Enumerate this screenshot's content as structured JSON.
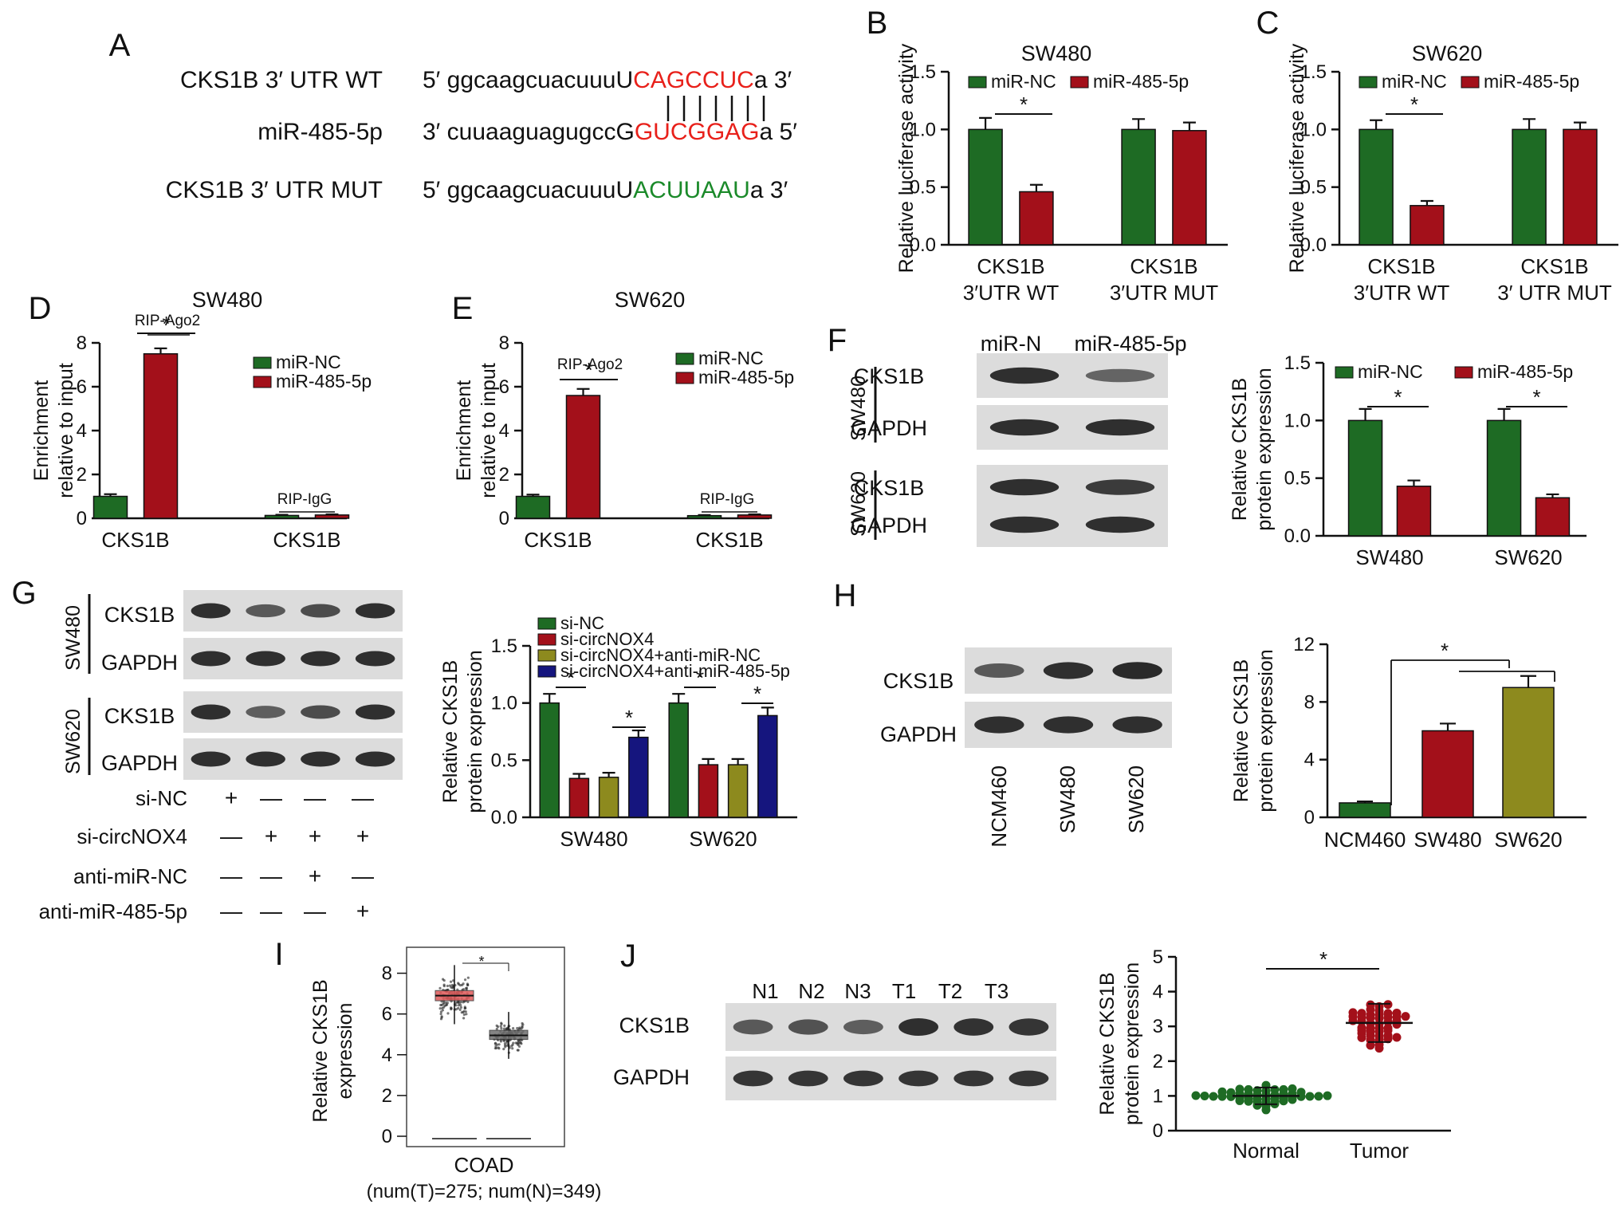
{
  "colors": {
    "green": "#1e6b24",
    "red": "#a3101a",
    "olive": "#8d8a1e",
    "navy": "#15157e",
    "seq_red": "#e8201a",
    "seq_green": "#1b8a2a",
    "box_red": "#e05a5a",
    "box_grey": "#6f6f6f"
  },
  "panels": {
    "A": {
      "letter": "A",
      "rows": [
        {
          "label": "CKS1B 3′ UTR WT",
          "prefix": "5′ ggcaagcuacuuuU",
          "core": "CAGCCUC",
          "suffix": "a 3′",
          "core_color": "seq_red"
        },
        {
          "label": "miR-485-5p",
          "prefix": "3′ cuuaaguagugccG",
          "core": "GUCGGAG",
          "suffix": "a 5′",
          "core_color": "seq_red"
        },
        {
          "label": "CKS1B 3′ UTR MUT",
          "prefix": "5′ ggcaagcuacuuuU",
          "core": "ACUUAAU",
          "suffix": "a 3′",
          "core_color": "seq_green"
        }
      ]
    },
    "D_letter": "D",
    "E_letter": "E",
    "F": {
      "letter": "F",
      "lane_labels": [
        "miR-N",
        "miR-485-5p"
      ],
      "cells": [
        "SW480",
        "SW620"
      ],
      "bands": [
        "CKS1B",
        "GAPDH",
        "CKS1B",
        "GAPDH"
      ]
    },
    "G": {
      "letter": "G",
      "cells": [
        "SW480",
        "SW620"
      ],
      "bands": [
        "CKS1B",
        "GAPDH",
        "CKS1B",
        "GAPDH"
      ],
      "conditions": [
        {
          "label": "si-NC",
          "marks": [
            "+",
            "—",
            "—",
            "—"
          ]
        },
        {
          "label": "si-circNOX4",
          "marks": [
            "—",
            "+",
            "+",
            "+"
          ]
        },
        {
          "label": "anti-miR-NC",
          "marks": [
            "—",
            "—",
            "+",
            "—"
          ]
        },
        {
          "label": "anti-miR-485-5p",
          "marks": [
            "—",
            "—",
            "—",
            "+"
          ]
        }
      ]
    },
    "H": {
      "letter": "H",
      "bands": [
        "CKS1B",
        "GAPDH"
      ],
      "lanes": [
        "NCM460",
        "SW480",
        "SW620"
      ]
    },
    "I_letter": "I",
    "J": {
      "letter": "J",
      "lanes": [
        "N1",
        "N2",
        "N3",
        "T1",
        "T2",
        "T3"
      ],
      "bands": [
        "CKS1B",
        "GAPDH"
      ]
    }
  },
  "chart_data": [
    {
      "id": "B",
      "letter": "B",
      "type": "bar",
      "title": "SW480",
      "ylabel": "Relative luciferase activity",
      "ylim": [
        0,
        1.5
      ],
      "yticks": [
        "0.0",
        "0.5",
        "1.0",
        "1.5"
      ],
      "categories": [
        [
          "CKS1B",
          "3′UTR WT"
        ],
        [
          "CKS1B",
          "3′UTR MUT"
        ]
      ],
      "legend_position": "top",
      "series": [
        {
          "name": "miR-NC",
          "color": "green",
          "values": [
            1.0,
            1.0
          ],
          "errors": [
            0.1,
            0.09
          ]
        },
        {
          "name": "miR-485-5p",
          "color": "red",
          "values": [
            0.46,
            0.99
          ],
          "errors": [
            0.06,
            0.07
          ]
        }
      ],
      "significance": [
        {
          "label": "*"
        }
      ]
    },
    {
      "id": "C",
      "letter": "C",
      "type": "bar",
      "title": "SW620",
      "ylabel": "Relative luciferase activity",
      "ylim": [
        0,
        1.5
      ],
      "yticks": [
        "0.0",
        "0.5",
        "1.0",
        "1.5"
      ],
      "categories": [
        [
          "CKS1B",
          "3′UTR WT"
        ],
        [
          "CKS1B",
          "3′ UTR MUT"
        ]
      ],
      "legend_position": "top",
      "series": [
        {
          "name": "miR-NC",
          "color": "green",
          "values": [
            1.0,
            1.0
          ],
          "errors": [
            0.08,
            0.09
          ]
        },
        {
          "name": "miR-485-5p",
          "color": "red",
          "values": [
            0.34,
            1.0
          ],
          "errors": [
            0.04,
            0.06
          ]
        }
      ],
      "significance": [
        {
          "label": "*"
        }
      ]
    },
    {
      "id": "D",
      "type": "bar",
      "title": "SW480",
      "ylabel": [
        "Enrichment",
        "relative to input"
      ],
      "ylim": [
        0,
        8
      ],
      "yticks": [
        "0",
        "2",
        "4",
        "6",
        "8"
      ],
      "categories": [
        [
          "CKS1B"
        ],
        [
          "CKS1B"
        ]
      ],
      "group_labels": [
        "RIP-Ago2",
        "RIP-IgG"
      ],
      "legend_position": "right",
      "series": [
        {
          "name": "miR-NC",
          "color": "green",
          "values": [
            1.0,
            0.13
          ],
          "errors": [
            0.1,
            0.03
          ]
        },
        {
          "name": "miR-485-5p",
          "color": "red",
          "values": [
            7.5,
            0.15
          ],
          "errors": [
            0.25,
            0.03
          ]
        }
      ],
      "significance": [
        {
          "label": "*"
        }
      ]
    },
    {
      "id": "E",
      "type": "bar",
      "title": "SW620",
      "ylabel": [
        "Enrichment",
        "relative to input"
      ],
      "ylim": [
        0,
        8
      ],
      "yticks": [
        "0",
        "2",
        "4",
        "6",
        "8"
      ],
      "categories": [
        [
          "CKS1B"
        ],
        [
          "CKS1B"
        ]
      ],
      "group_labels": [
        "RIP-Ago2",
        "RIP-IgG"
      ],
      "legend_position": "right",
      "series": [
        {
          "name": "miR-NC",
          "color": "green",
          "values": [
            1.0,
            0.12
          ],
          "errors": [
            0.08,
            0.03
          ]
        },
        {
          "name": "miR-485-5p",
          "color": "red",
          "values": [
            5.6,
            0.15
          ],
          "errors": [
            0.3,
            0.03
          ]
        }
      ],
      "significance": [
        {
          "label": "*"
        }
      ]
    },
    {
      "id": "F",
      "type": "bar",
      "ylabel": [
        "Relative CKS1B",
        "protein expression"
      ],
      "ylim": [
        0,
        1.5
      ],
      "yticks": [
        "0.0",
        "0.5",
        "1.0",
        "1.5"
      ],
      "categories": [
        [
          "SW480"
        ],
        [
          "SW620"
        ]
      ],
      "legend_position": "top",
      "series": [
        {
          "name": "miR-NC",
          "color": "green",
          "values": [
            1.0,
            1.0
          ],
          "errors": [
            0.1,
            0.1
          ]
        },
        {
          "name": "miR-485-5p",
          "color": "red",
          "values": [
            0.43,
            0.33
          ],
          "errors": [
            0.05,
            0.03
          ]
        }
      ],
      "significance": [
        {
          "label": "*"
        },
        {
          "label": "*"
        }
      ]
    },
    {
      "id": "G",
      "type": "bar",
      "ylabel": [
        "Relative CKS1B",
        "protein expression"
      ],
      "ylim": [
        0,
        1.5
      ],
      "yticks": [
        "0.0",
        "0.5",
        "1.0",
        "1.5"
      ],
      "categories": [
        [
          "SW480"
        ],
        [
          "SW620"
        ]
      ],
      "legend_position": "top",
      "series": [
        {
          "name": "si-NC",
          "color": "green",
          "values": [
            1.0,
            1.0
          ],
          "errors": [
            0.08,
            0.08
          ]
        },
        {
          "name": "si-circNOX4",
          "color": "red",
          "values": [
            0.34,
            0.46
          ],
          "errors": [
            0.04,
            0.05
          ]
        },
        {
          "name": "si-circNOX4+anti-miR-NC",
          "color": "olive",
          "values": [
            0.35,
            0.46
          ],
          "errors": [
            0.04,
            0.05
          ]
        },
        {
          "name": "si-circNOX4+anti-miR-485-5p",
          "color": "navy",
          "values": [
            0.7,
            0.89
          ],
          "errors": [
            0.06,
            0.07
          ]
        }
      ],
      "significance": [
        {
          "label": "*"
        },
        {
          "label": "*"
        },
        {
          "label": "*"
        },
        {
          "label": "*"
        }
      ]
    },
    {
      "id": "H",
      "type": "bar",
      "ylabel": [
        "Relative CKS1B",
        "protein expression"
      ],
      "ylim": [
        0,
        12
      ],
      "yticks": [
        "0",
        "4",
        "8",
        "12"
      ],
      "categories": [
        "NCM460",
        "SW480",
        "SW620"
      ],
      "colors": [
        "green",
        "red",
        "olive"
      ],
      "values": [
        1.0,
        6.0,
        9.0
      ],
      "errors": [
        0.1,
        0.5,
        0.8
      ],
      "significance": [
        {
          "label": "*"
        }
      ]
    },
    {
      "id": "I",
      "type": "box",
      "letter": "I",
      "ylabel": [
        "Relative CKS1B",
        "expression"
      ],
      "ylim": [
        0,
        9
      ],
      "yticks": [
        "0",
        "2",
        "4",
        "6",
        "8"
      ],
      "xlabel": [
        "COAD",
        "(num(T)=275; num(N)=349)"
      ],
      "boxes": [
        {
          "group": "T",
          "n": 275,
          "color": "box_red",
          "median": 6.9,
          "q1": 6.65,
          "q3": 7.15,
          "min": 5.5,
          "max": 8.4
        },
        {
          "group": "N",
          "n": 349,
          "color": "box_grey",
          "median": 4.95,
          "q1": 4.75,
          "q3": 5.2,
          "min": 3.8,
          "max": 6.1
        }
      ],
      "significance": [
        {
          "label": "*"
        }
      ]
    },
    {
      "id": "J",
      "type": "scatter",
      "ylabel": [
        "Relative CKS1B",
        "protein expression"
      ],
      "ylim": [
        0,
        5
      ],
      "yticks": [
        "0",
        "1",
        "2",
        "3",
        "4",
        "5"
      ],
      "categories": [
        "Normal",
        "Tumor"
      ],
      "groups": [
        {
          "name": "Normal",
          "color": "green",
          "mean": 1.0,
          "sd": 0.24,
          "min": 0.55,
          "max": 1.6,
          "n": 45
        },
        {
          "name": "Tumor",
          "color": "red",
          "mean": 3.1,
          "sd": 0.55,
          "min": 2.0,
          "max": 4.6,
          "n": 45
        }
      ],
      "significance": [
        {
          "label": "*"
        }
      ]
    }
  ]
}
